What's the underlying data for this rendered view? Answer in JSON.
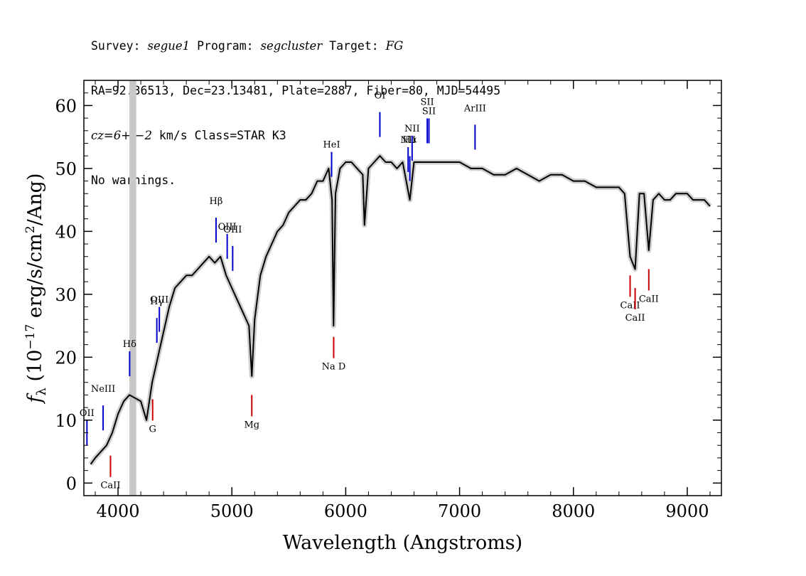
{
  "header": {
    "line1": [
      {
        "text": "Survey: ",
        "italic": false
      },
      {
        "text": "segue1",
        "italic": true
      },
      {
        "text": " Program: ",
        "italic": false
      },
      {
        "text": "segcluster",
        "italic": true
      },
      {
        "text": " Target: ",
        "italic": false
      },
      {
        "text": "FG",
        "italic": true
      }
    ],
    "line2": "RA=92.36513, Dec=23.13481, Plate=2887, Fiber=80, MJD=54495",
    "line3": [
      {
        "text": "cz=6+/−2",
        "italic": true
      },
      {
        "text": " km/s Class=STAR K3",
        "italic": false
      }
    ],
    "line4": "No warnings."
  },
  "chart_data": {
    "type": "line",
    "title": "",
    "xlabel": "Wavelength (Angstroms)",
    "ylabel": "f_λ (10^-17 erg/s/cm^2/Ang)",
    "xlim": [
      3700,
      9300
    ],
    "ylim": [
      -2,
      64
    ],
    "xticks": [
      4000,
      5000,
      6000,
      7000,
      8000,
      9000
    ],
    "yticks": [
      0,
      10,
      20,
      30,
      40,
      50,
      60
    ],
    "grid": false,
    "colors": {
      "spectrum": "#000000",
      "error": "#c0c0c0",
      "emission": "#0000cc",
      "absorption": "#cc0000",
      "masked": "#c8c8c8"
    },
    "masked_band": [
      4100,
      4160
    ],
    "series": [
      {
        "x": [
          3760,
          3800,
          3850,
          3900,
          3950,
          4000,
          4050,
          4100,
          4200,
          4250,
          4300,
          4350,
          4400,
          4450,
          4500,
          4550,
          4600,
          4650,
          4700,
          4750,
          4800,
          4850,
          4900,
          4950,
          5000,
          5050,
          5100,
          5150,
          5175,
          5200,
          5250,
          5300,
          5350,
          5400,
          5450,
          5500,
          5550,
          5600,
          5650,
          5700,
          5750,
          5800,
          5850,
          5880,
          5893,
          5910,
          5950,
          6000,
          6050,
          6100,
          6150,
          6165,
          6200,
          6250,
          6300,
          6350,
          6400,
          6450,
          6500,
          6563,
          6600,
          6650,
          6700,
          6800,
          6900,
          7000,
          7100,
          7200,
          7300,
          7400,
          7500,
          7600,
          7700,
          7800,
          7900,
          8000,
          8100,
          8200,
          8300,
          8400,
          8450,
          8498,
          8542,
          8580,
          8620,
          8662,
          8700,
          8750,
          8800,
          8850,
          8900,
          8950,
          9000,
          9050,
          9100,
          9150,
          9200
        ],
        "values": [
          3,
          4,
          5,
          6,
          8,
          11,
          13,
          14,
          13,
          10,
          16,
          20,
          24,
          28,
          31,
          32,
          33,
          33,
          34,
          35,
          36,
          35,
          36,
          33,
          31,
          29,
          27,
          25,
          17,
          26,
          33,
          36,
          38,
          40,
          41,
          43,
          44,
          45,
          45,
          46,
          48,
          48,
          50,
          45,
          25,
          46,
          50,
          51,
          51,
          50,
          49,
          41,
          50,
          51,
          52,
          51,
          51,
          50,
          51,
          45,
          51,
          51,
          51,
          51,
          51,
          51,
          50,
          50,
          49,
          49,
          50,
          49,
          48,
          49,
          49,
          48,
          48,
          47,
          47,
          47,
          46,
          36,
          34,
          46,
          46,
          37,
          45,
          46,
          45,
          45,
          46,
          46,
          46,
          45,
          45,
          45,
          44
        ]
      }
    ],
    "emission_lines": [
      {
        "label": "OII",
        "wavelength": 3727
      },
      {
        "label": "NeIII",
        "wavelength": 3869
      },
      {
        "label": "Hδ",
        "wavelength": 4102
      },
      {
        "label": "Hγ",
        "wavelength": 4341
      },
      {
        "label": "OIII",
        "wavelength": 4363
      },
      {
        "label": "Hβ",
        "wavelength": 4861
      },
      {
        "label": "OIII",
        "wavelength": 4959
      },
      {
        "label": "OIII",
        "wavelength": 5007
      },
      {
        "label": "HeI",
        "wavelength": 5876
      },
      {
        "label": "OI",
        "wavelength": 6300
      },
      {
        "label": "NII",
        "wavelength": 6548
      },
      {
        "label": "Hα",
        "wavelength": 6563
      },
      {
        "label": "NII",
        "wavelength": 6583
      },
      {
        "label": "SII",
        "wavelength": 6716
      },
      {
        "label": "SII",
        "wavelength": 6731
      },
      {
        "label": "ArIII",
        "wavelength": 7136
      }
    ],
    "absorption_lines": [
      {
        "label": "CaII",
        "wavelength": 3934
      },
      {
        "label": "G",
        "wavelength": 4304
      },
      {
        "label": "Mg",
        "wavelength": 5175
      },
      {
        "label": "Na D",
        "wavelength": 5894
      },
      {
        "label": "CaII",
        "wavelength": 8498
      },
      {
        "label": "CaII",
        "wavelength": 8542
      },
      {
        "label": "CaII",
        "wavelength": 8662
      }
    ]
  }
}
